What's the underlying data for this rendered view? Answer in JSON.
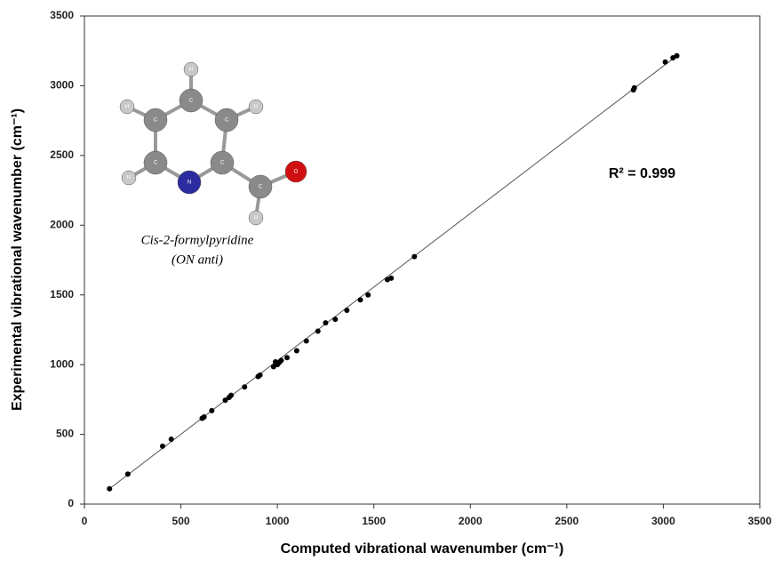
{
  "chart_data": {
    "type": "scatter",
    "x_label": "Computed vibrational wavenumber (cm⁻¹)",
    "y_label": "Experimental vibrational  wavenumber  (cm⁻¹)",
    "x": [
      130,
      225,
      405,
      450,
      610,
      620,
      660,
      730,
      750,
      760,
      830,
      900,
      910,
      980,
      990,
      1000,
      1010,
      1020,
      1050,
      1100,
      1150,
      1210,
      1250,
      1300,
      1360,
      1430,
      1470,
      1570,
      1590,
      1710,
      2845,
      2850,
      3010,
      3050,
      3070
    ],
    "values": [
      110,
      215,
      415,
      465,
      615,
      625,
      670,
      745,
      765,
      780,
      840,
      915,
      925,
      985,
      1020,
      1000,
      1015,
      1030,
      1050,
      1100,
      1170,
      1240,
      1300,
      1325,
      1390,
      1465,
      1500,
      1610,
      1620,
      1775,
      2970,
      2985,
      3170,
      3200,
      3215
    ],
    "color": "#000000",
    "fit_line": {
      "x": [
        130,
        3075
      ],
      "values": [
        110,
        3220
      ],
      "color": "#555555"
    },
    "xlim": [
      0,
      3500
    ],
    "ylim": [
      0,
      3500
    ],
    "xticks": [
      0,
      500,
      1000,
      1500,
      2000,
      2500,
      3000,
      3500
    ],
    "yticks": [
      0,
      500,
      1000,
      1500,
      2000,
      2500,
      3000,
      3500
    ],
    "grid": false,
    "annotations": [
      "R² = 0.999",
      "Cis-2-formylpyridine",
      "(ON anti)"
    ],
    "molecule_labels": [
      "H",
      "C",
      "C",
      "C",
      "C",
      "C",
      "N",
      "C",
      "O",
      "H",
      "H",
      "H",
      "H"
    ]
  }
}
